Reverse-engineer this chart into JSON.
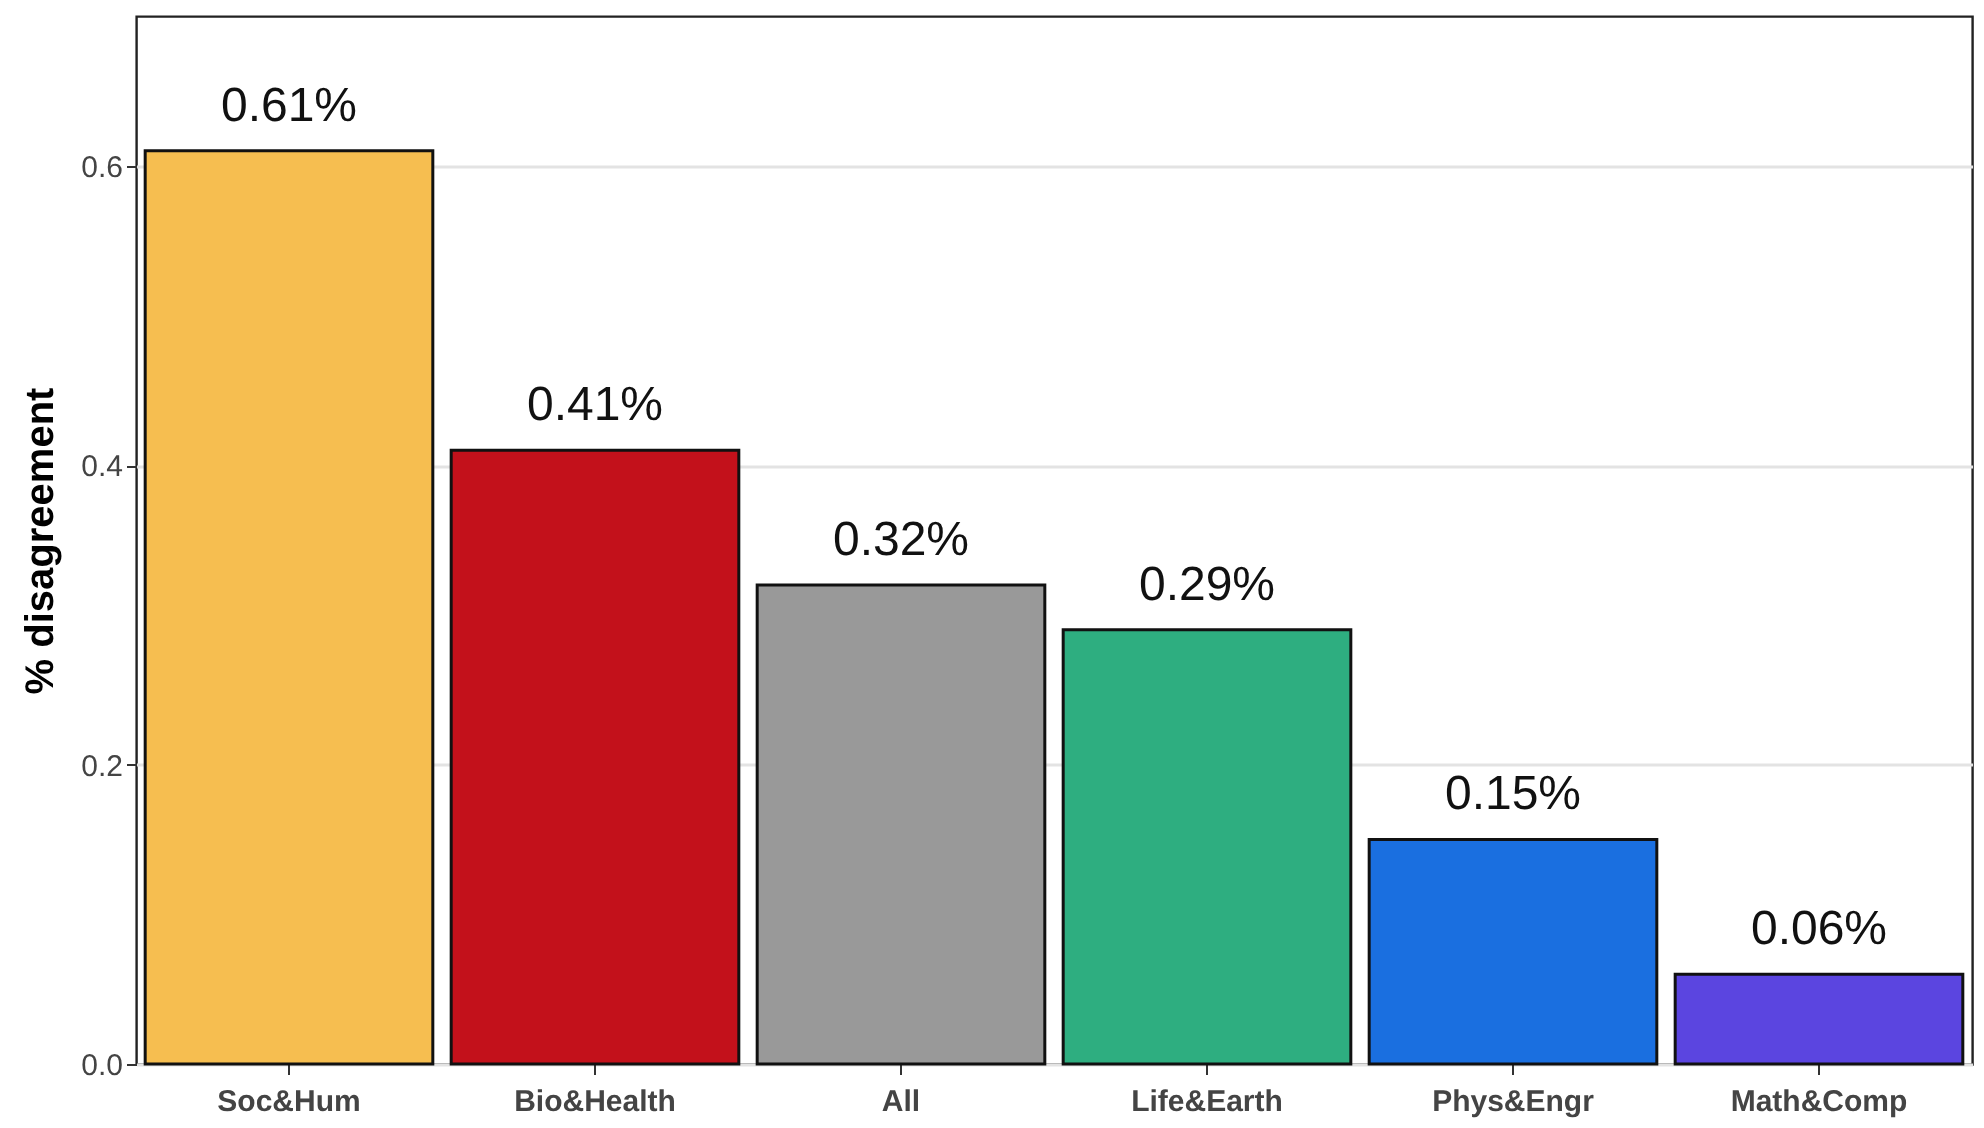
{
  "chart_data": {
    "type": "bar",
    "ylabel": "% disagreement",
    "categories": [
      "Soc&Hum",
      "Bio&Health",
      "All",
      "Life&Earth",
      "Phys&Engr",
      "Math&Comp"
    ],
    "values": [
      0.61,
      0.41,
      0.32,
      0.29,
      0.15,
      0.06
    ],
    "colors": [
      "#f6be50",
      "#c3111b",
      "#999999",
      "#2eae80",
      "#1a6fe0",
      "#5b45e0"
    ],
    "value_labels": [
      "0.61%",
      "0.41%",
      "0.32%",
      "0.29%",
      "0.15%",
      "0.06%"
    ],
    "ylim": [
      0,
      0.7
    ],
    "yticks": [
      {
        "value": 0,
        "label": "0.0"
      },
      {
        "value": 0.2,
        "label": "0.2"
      },
      {
        "value": 0.4,
        "label": "0.4"
      },
      {
        "value": 0.6,
        "label": "0.6"
      }
    ],
    "grid": "y"
  }
}
